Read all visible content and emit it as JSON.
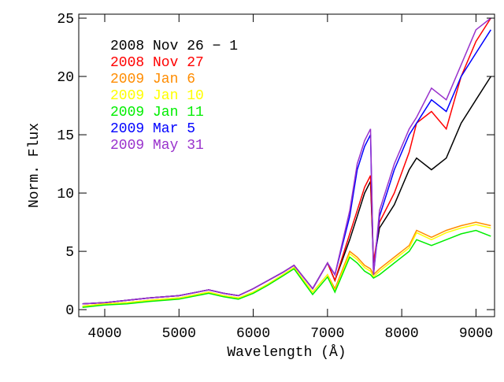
{
  "chart_data": {
    "type": "line",
    "x_label": "Wavelength (Å)",
    "y_label": "Norm. Flux",
    "xlim": [
      3650,
      9250
    ],
    "ylim": [
      -0.6,
      25.34
    ],
    "xticks": [
      4000,
      5000,
      6000,
      7000,
      8000,
      9000
    ],
    "yticks": [
      0,
      5,
      10,
      15,
      20,
      25
    ],
    "x": [
      3700,
      4000,
      4300,
      4600,
      5000,
      5400,
      5600,
      5800,
      6000,
      6200,
      6400,
      6550,
      6800,
      7000,
      7100,
      7300,
      7400,
      7500,
      7580,
      7620,
      7700,
      7900,
      8100,
      8200,
      8400,
      8600,
      8800,
      9000,
      9200
    ],
    "series": [
      {
        "name": "2008 Nov 26 − 1",
        "color": "#000000",
        "values": [
          0.5,
          0.6,
          0.8,
          1.0,
          1.2,
          1.7,
          1.4,
          1.2,
          1.8,
          2.5,
          3.2,
          3.8,
          1.8,
          4.0,
          2.5,
          6.0,
          8.0,
          10.0,
          11.0,
          4.0,
          7.0,
          9.0,
          12.0,
          13.0,
          12.0,
          13.0,
          16.0,
          18.0,
          20.0
        ]
      },
      {
        "name": "2008 Nov 27",
        "color": "#ff0000",
        "values": [
          0.5,
          0.6,
          0.8,
          1.0,
          1.2,
          1.7,
          1.4,
          1.2,
          1.8,
          2.5,
          3.2,
          3.8,
          1.8,
          4.0,
          2.5,
          6.5,
          8.5,
          10.5,
          11.5,
          4.0,
          7.5,
          10.0,
          13.5,
          16.0,
          17.0,
          15.5,
          20.0,
          23.0,
          25.0
        ]
      },
      {
        "name": "2009 Jan 6",
        "color": "#ff8c00",
        "values": [
          0.3,
          0.5,
          0.6,
          0.8,
          1.0,
          1.5,
          1.2,
          1.0,
          1.5,
          2.2,
          3.0,
          3.6,
          1.5,
          3.0,
          1.8,
          5.0,
          4.5,
          3.8,
          3.5,
          3.0,
          3.5,
          4.5,
          5.5,
          6.8,
          6.2,
          6.8,
          7.2,
          7.5,
          7.2
        ]
      },
      {
        "name": "2009 Jan 10",
        "color": "#ffff00",
        "values": [
          0.3,
          0.5,
          0.6,
          0.8,
          1.0,
          1.5,
          1.2,
          1.0,
          1.5,
          2.2,
          3.0,
          3.6,
          1.5,
          3.0,
          1.6,
          4.8,
          4.3,
          3.6,
          3.3,
          2.8,
          3.3,
          4.3,
          5.3,
          6.6,
          6.0,
          6.6,
          7.0,
          7.3,
          7.0
        ]
      },
      {
        "name": "2009 Jan 11",
        "color": "#00ee00",
        "values": [
          0.2,
          0.4,
          0.5,
          0.7,
          0.9,
          1.4,
          1.1,
          0.9,
          1.4,
          2.1,
          2.9,
          3.5,
          1.3,
          2.8,
          1.5,
          4.5,
          4.0,
          3.3,
          3.0,
          2.7,
          3.0,
          4.0,
          5.0,
          6.0,
          5.5,
          6.0,
          6.5,
          6.8,
          6.3
        ]
      },
      {
        "name": "2009 Mar 5",
        "color": "#0000ff",
        "values": [
          0.5,
          0.6,
          0.8,
          1.0,
          1.2,
          1.7,
          1.4,
          1.2,
          1.8,
          2.5,
          3.2,
          3.8,
          1.8,
          4.0,
          3.0,
          8.0,
          12.0,
          14.0,
          15.0,
          3.0,
          8.0,
          12.0,
          15.0,
          16.0,
          18.0,
          17.0,
          20.0,
          22.0,
          24.0
        ]
      },
      {
        "name": "2009 May 31",
        "color": "#9932cc",
        "values": [
          0.5,
          0.6,
          0.8,
          1.0,
          1.2,
          1.7,
          1.4,
          1.2,
          1.8,
          2.5,
          3.2,
          3.8,
          1.8,
          4.0,
          3.0,
          8.5,
          12.5,
          14.5,
          15.5,
          3.0,
          8.5,
          12.5,
          15.5,
          16.5,
          19.0,
          18.0,
          21.0,
          24.0,
          25.0
        ]
      }
    ]
  }
}
